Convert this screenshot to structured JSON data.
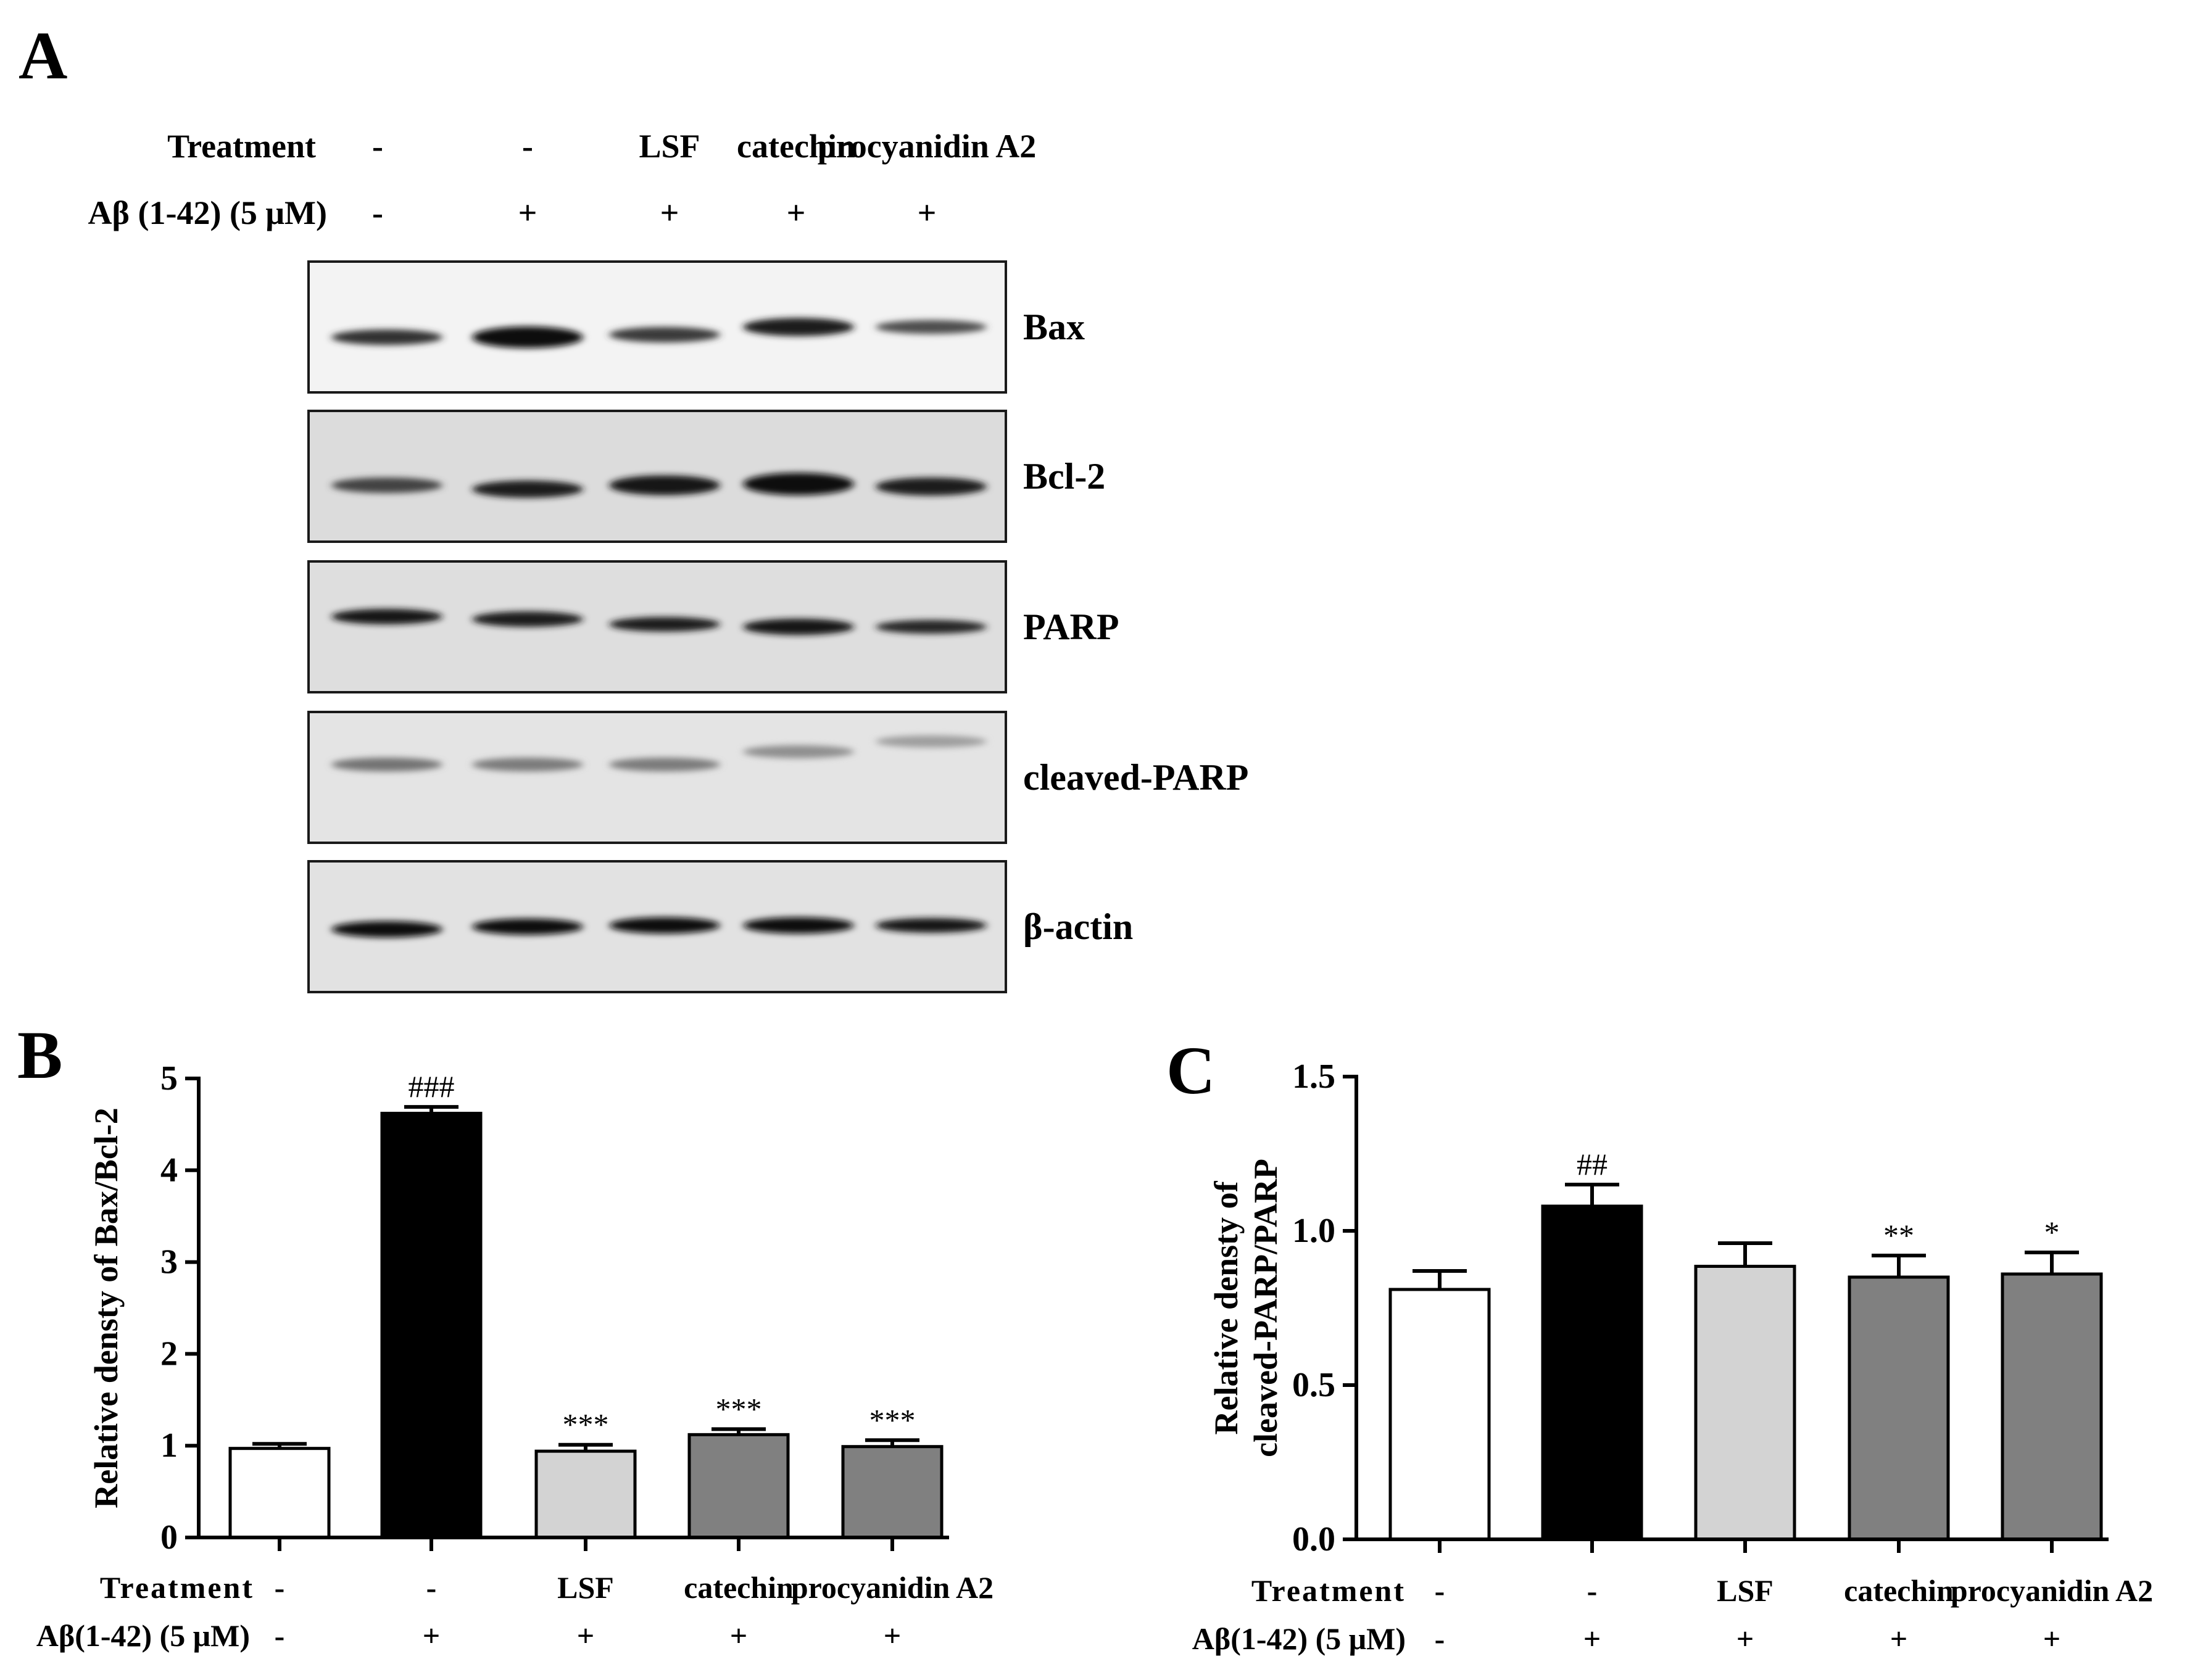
{
  "panel_a": {
    "letter": "A",
    "header_rows": [
      {
        "label": "Treatment",
        "values": [
          "-",
          "-",
          "LSF",
          "catechin",
          "procyanidin A2"
        ]
      },
      {
        "label": "Aβ (1-42) (5 μM)",
        "values": [
          "-",
          "+",
          "+",
          "+",
          "+"
        ]
      }
    ],
    "blots": [
      {
        "name": "Bax",
        "bg": "#f3f3f3",
        "bands": [
          {
            "intensity": 0.8,
            "thickness": 0.9,
            "y": 0.58
          },
          {
            "intensity": 1.0,
            "thickness": 1.25,
            "y": 0.58
          },
          {
            "intensity": 0.75,
            "thickness": 0.9,
            "y": 0.56
          },
          {
            "intensity": 0.9,
            "thickness": 1.05,
            "y": 0.5
          },
          {
            "intensity": 0.65,
            "thickness": 0.8,
            "y": 0.5
          }
        ]
      },
      {
        "name": "Bcl-2",
        "bg": "#dcdcdc",
        "bands": [
          {
            "intensity": 0.7,
            "thickness": 0.9,
            "y": 0.57
          },
          {
            "intensity": 0.9,
            "thickness": 1.0,
            "y": 0.6
          },
          {
            "intensity": 0.95,
            "thickness": 1.15,
            "y": 0.57
          },
          {
            "intensity": 1.0,
            "thickness": 1.3,
            "y": 0.56
          },
          {
            "intensity": 0.9,
            "thickness": 1.05,
            "y": 0.58
          }
        ]
      },
      {
        "name": "PARP",
        "bg": "#dedede",
        "bands": [
          {
            "intensity": 0.95,
            "thickness": 0.9,
            "y": 0.42
          },
          {
            "intensity": 0.9,
            "thickness": 0.9,
            "y": 0.44
          },
          {
            "intensity": 0.9,
            "thickness": 0.85,
            "y": 0.48
          },
          {
            "intensity": 0.95,
            "thickness": 0.95,
            "y": 0.5
          },
          {
            "intensity": 0.85,
            "thickness": 0.8,
            "y": 0.5
          }
        ]
      },
      {
        "name": "cleaved-PARP",
        "bg": "#e4e4e4",
        "bands": [
          {
            "intensity": 0.45,
            "thickness": 0.8,
            "y": 0.4
          },
          {
            "intensity": 0.4,
            "thickness": 0.8,
            "y": 0.4
          },
          {
            "intensity": 0.4,
            "thickness": 0.8,
            "y": 0.4
          },
          {
            "intensity": 0.3,
            "thickness": 0.75,
            "y": 0.3
          },
          {
            "intensity": 0.22,
            "thickness": 0.7,
            "y": 0.22
          }
        ]
      },
      {
        "name": "β-actin",
        "bg": "#e2e2e2",
        "bands": [
          {
            "intensity": 1.0,
            "thickness": 0.95,
            "y": 0.52
          },
          {
            "intensity": 1.0,
            "thickness": 0.95,
            "y": 0.5
          },
          {
            "intensity": 1.0,
            "thickness": 0.95,
            "y": 0.49
          },
          {
            "intensity": 1.0,
            "thickness": 0.95,
            "y": 0.49
          },
          {
            "intensity": 0.95,
            "thickness": 0.85,
            "y": 0.49
          }
        ]
      }
    ]
  },
  "chart_data": [
    {
      "panel": "B",
      "type": "bar",
      "ylabel": "Relative densty of Bax/Bcl-2",
      "ylim": [
        0,
        5
      ],
      "yticks": [
        "0",
        "1",
        "2",
        "3",
        "4",
        "5"
      ],
      "categories": [
        "-",
        "-",
        "LSF",
        "catechin",
        "procyanidin A2"
      ],
      "values": [
        0.97,
        4.62,
        0.94,
        1.12,
        0.99
      ],
      "errors": [
        0.05,
        0.07,
        0.07,
        0.06,
        0.07
      ],
      "annotations": [
        "",
        "###",
        "***",
        "***",
        "***"
      ],
      "colors": [
        "#ffffff",
        "#000000",
        "#d3d3d3",
        "#808080",
        "#808080"
      ],
      "header_rows": [
        {
          "label": "Treatment",
          "values": [
            "-",
            "-",
            "LSF",
            "catechin",
            "procyanidin A2"
          ]
        },
        {
          "label": "Aβ(1-42) (5 μM)",
          "values": [
            "-",
            "+",
            "+",
            "+",
            "+"
          ]
        }
      ]
    },
    {
      "panel": "C",
      "type": "bar",
      "ylabel": "Relative densty of cleaved-PARP/PARP",
      "ylabel_lines": [
        "Relative densty of",
        "cleaved-PARP/PARP"
      ],
      "ylim": [
        0,
        1.5
      ],
      "yticks": [
        "0.0",
        "0.5",
        "1.0",
        "1.5"
      ],
      "categories": [
        "-",
        "-",
        "LSF",
        "catechin",
        "procyanidin A2"
      ],
      "values": [
        0.81,
        1.08,
        0.885,
        0.85,
        0.86
      ],
      "errors": [
        0.06,
        0.07,
        0.075,
        0.07,
        0.07
      ],
      "annotations": [
        "",
        "##",
        "",
        "**",
        "*"
      ],
      "colors": [
        "#ffffff",
        "#000000",
        "#d3d3d3",
        "#808080",
        "#808080"
      ],
      "header_rows": [
        {
          "label": "Treatment",
          "values": [
            "-",
            "-",
            "LSF",
            "catechin",
            "procyanidin A2"
          ]
        },
        {
          "label": "Aβ(1-42) (5 μM)",
          "values": [
            "-",
            "+",
            "+",
            "+",
            "+"
          ]
        }
      ]
    }
  ]
}
